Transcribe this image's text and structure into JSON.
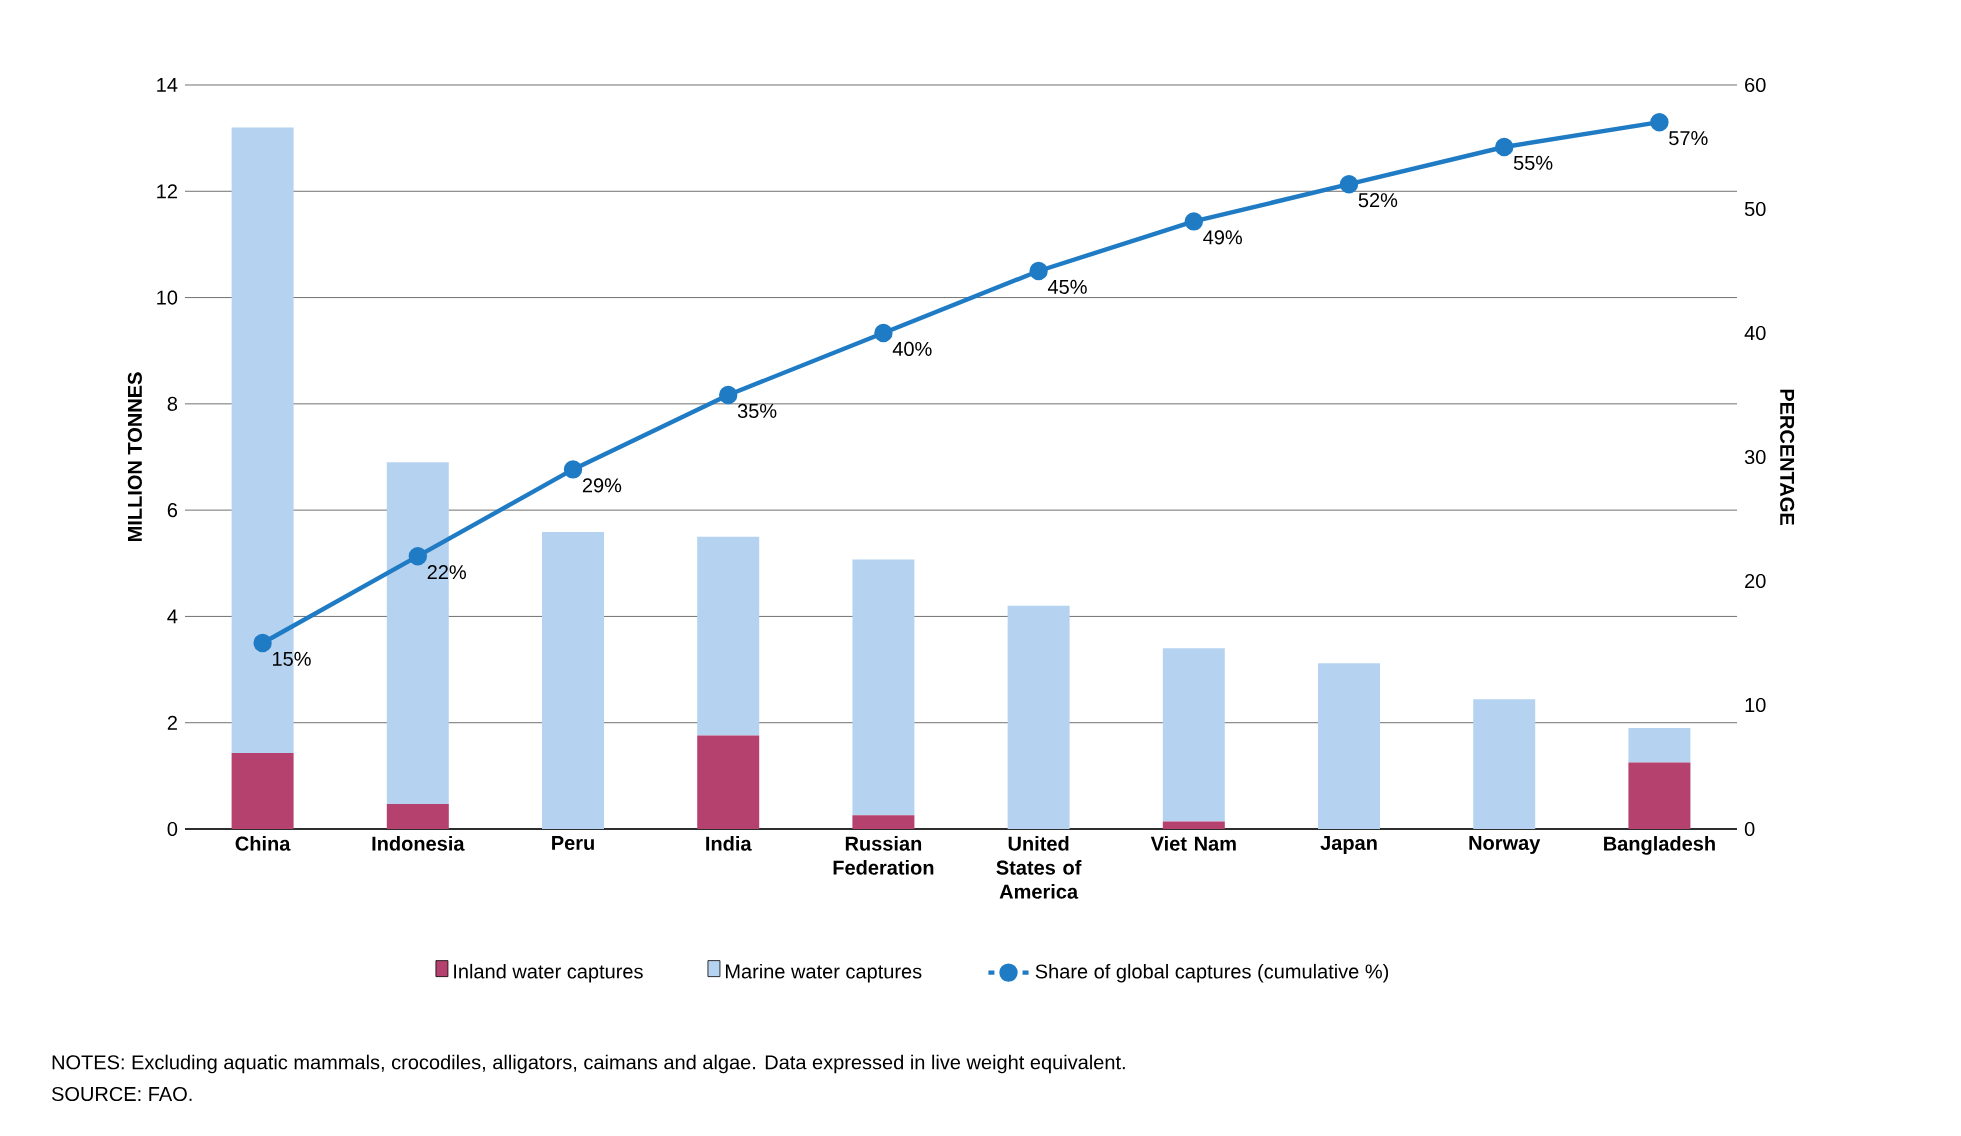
{
  "chart_data": {
    "type": "bar",
    "stacked": true,
    "categories": [
      "China",
      "Indonesia",
      "Peru",
      "India",
      "Russian Federation",
      "United States of America",
      "Viet Nam",
      "Japan",
      "Norway",
      "Bangladesh"
    ],
    "series": [
      {
        "name": "Inland water captures",
        "color": "#b5416e",
        "values": [
          1.43,
          0.47,
          0,
          1.76,
          0.26,
          0,
          0.14,
          0,
          0,
          1.25
        ]
      },
      {
        "name": "Marine water captures",
        "color": "#b5d3f0",
        "values": [
          11.77,
          6.43,
          5.59,
          3.74,
          4.81,
          4.2,
          3.26,
          3.12,
          2.44,
          0.65
        ]
      },
      {
        "name": "Share of global captures (cumulative %)",
        "type": "line",
        "axis": "y2",
        "color": "#1f7bc4",
        "values": [
          15,
          22,
          29,
          35,
          40,
          45,
          49,
          52,
          55,
          57
        ],
        "value_labels": [
          "15%",
          "22%",
          "29%",
          "35%",
          "40%",
          "45%",
          "49%",
          "52%",
          "55%",
          "57%"
        ]
      }
    ],
    "ylabel": "MILLION TONNES",
    "y2label": "PERCENTAGE",
    "ylim": [
      0,
      14
    ],
    "yticks": [
      0,
      2,
      4,
      6,
      8,
      10,
      12,
      14
    ],
    "y2lim": [
      0,
      60
    ],
    "y2ticks": [
      0,
      10,
      20,
      30,
      40,
      50,
      60
    ],
    "grid": "y",
    "legend": "bottom",
    "marker": "circle",
    "annotations": [
      "NOTES: Excluding aquatic mammals, crocodiles, alligators, caimans and algae. Data expressed in live weight equivalent.",
      "SOURCE: FAO."
    ]
  }
}
